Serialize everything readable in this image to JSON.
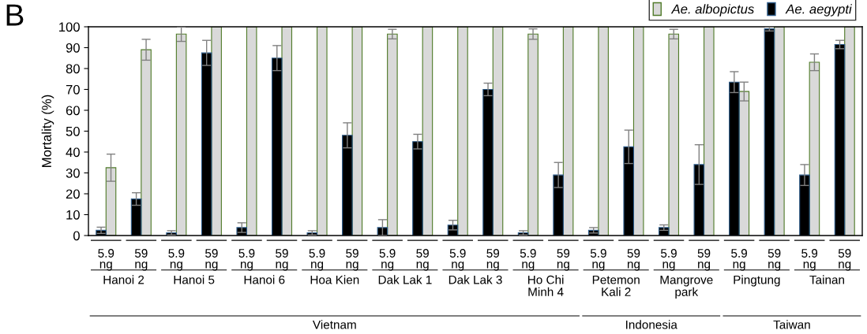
{
  "chart_data": {
    "type": "bar",
    "ylabel": "Mortality (%)",
    "categories": [
      "5.9\nng",
      "59\nng",
      "5.9\nng",
      "59\nng",
      "5.9\nng",
      "59\nng",
      "5.9\nng",
      "59\nng",
      "5.9\nng",
      "59\nng",
      "5.9\nng",
      "59\nng",
      "5.9\nng",
      "59\nng",
      "5.9\nng",
      "59\nng",
      "5.9\nng",
      "59\nng",
      "5.9\nng",
      "59\nng",
      "5.9\nng",
      "59\nng"
    ],
    "series": [
      {
        "name": "Ae. albopictus",
        "color": "#d9d9d9",
        "values": [
          32.5,
          89,
          96.5,
          100,
          100,
          100,
          100,
          100,
          96.5,
          100,
          100,
          100,
          96.5,
          100,
          100,
          100,
          96.5,
          100,
          69,
          100,
          83,
          100
        ],
        "errors": [
          6.5,
          5,
          3.5,
          null,
          null,
          null,
          null,
          null,
          2.3,
          null,
          null,
          null,
          2.5,
          null,
          null,
          null,
          2.3,
          null,
          4.5,
          null,
          4,
          null
        ]
      },
      {
        "name": "Ae. aegypti",
        "color": "#000000",
        "values": [
          2.5,
          17.5,
          1.3,
          87.5,
          3.8,
          85,
          1.3,
          48,
          3.8,
          45,
          5,
          70,
          1.3,
          29,
          2.5,
          42.5,
          3.8,
          34,
          73.5,
          99,
          29,
          91.5
        ],
        "errors": [
          1.5,
          3,
          1,
          6,
          2.3,
          6,
          1,
          6,
          3.8,
          3.5,
          2.3,
          3,
          1,
          6,
          1.3,
          8,
          1.3,
          9.5,
          5,
          1,
          5,
          2
        ]
      }
    ],
    "ylim": [
      0,
      100
    ],
    "yticks": [
      0,
      10,
      20,
      30,
      40,
      50,
      60,
      70,
      80,
      90,
      100
    ],
    "legend": "top right",
    "grid": false,
    "annotations": [
      "B",
      "Hanoi 2",
      "Hanoi 5",
      "Hanoi 6",
      "Hoa Kien",
      "Dak Lak 1",
      "Dak Lak 3",
      "Ho Chi\nMinh 4",
      "Petemon\nKali 2",
      "Mangrove\npark",
      "Pingtung",
      "Tainan",
      "Vietnam",
      "Indonesia",
      "Taiwan"
    ]
  }
}
